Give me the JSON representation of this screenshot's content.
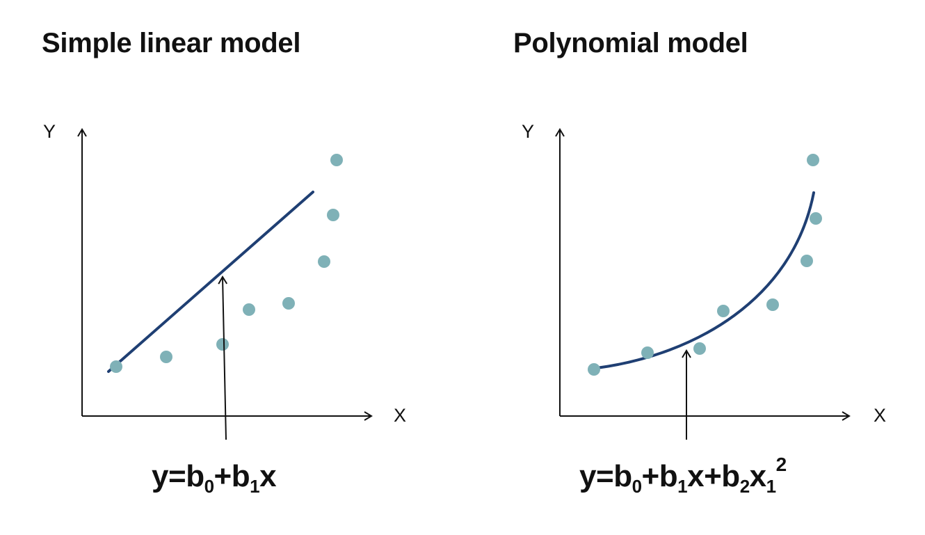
{
  "left_panel": {
    "title": "Simple linear model",
    "y_axis_label": "Y",
    "x_axis_label": "X",
    "formula": {
      "y": "y",
      "eq": "=",
      "b0": "b",
      "sub0": "0",
      "plus1": "+",
      "b1": "b",
      "sub1": "1",
      "x": "x"
    },
    "line_color": "#1f3f73",
    "point_color": "#7fb1b7"
  },
  "right_panel": {
    "title": "Polynomial model",
    "y_axis_label": "Y",
    "x_axis_label": "X",
    "formula": {
      "y": "y",
      "eq": "=",
      "b0": "b",
      "sub0": "0",
      "plus1": "+",
      "b1": "b",
      "sub1": "1",
      "x1": "x",
      "plus2": "+",
      "b2": "b",
      "sub2": "2",
      "x2": "x",
      "subx": "1",
      "exp": "2"
    },
    "line_color": "#1f3f73",
    "point_color": "#7fb1b7"
  }
}
